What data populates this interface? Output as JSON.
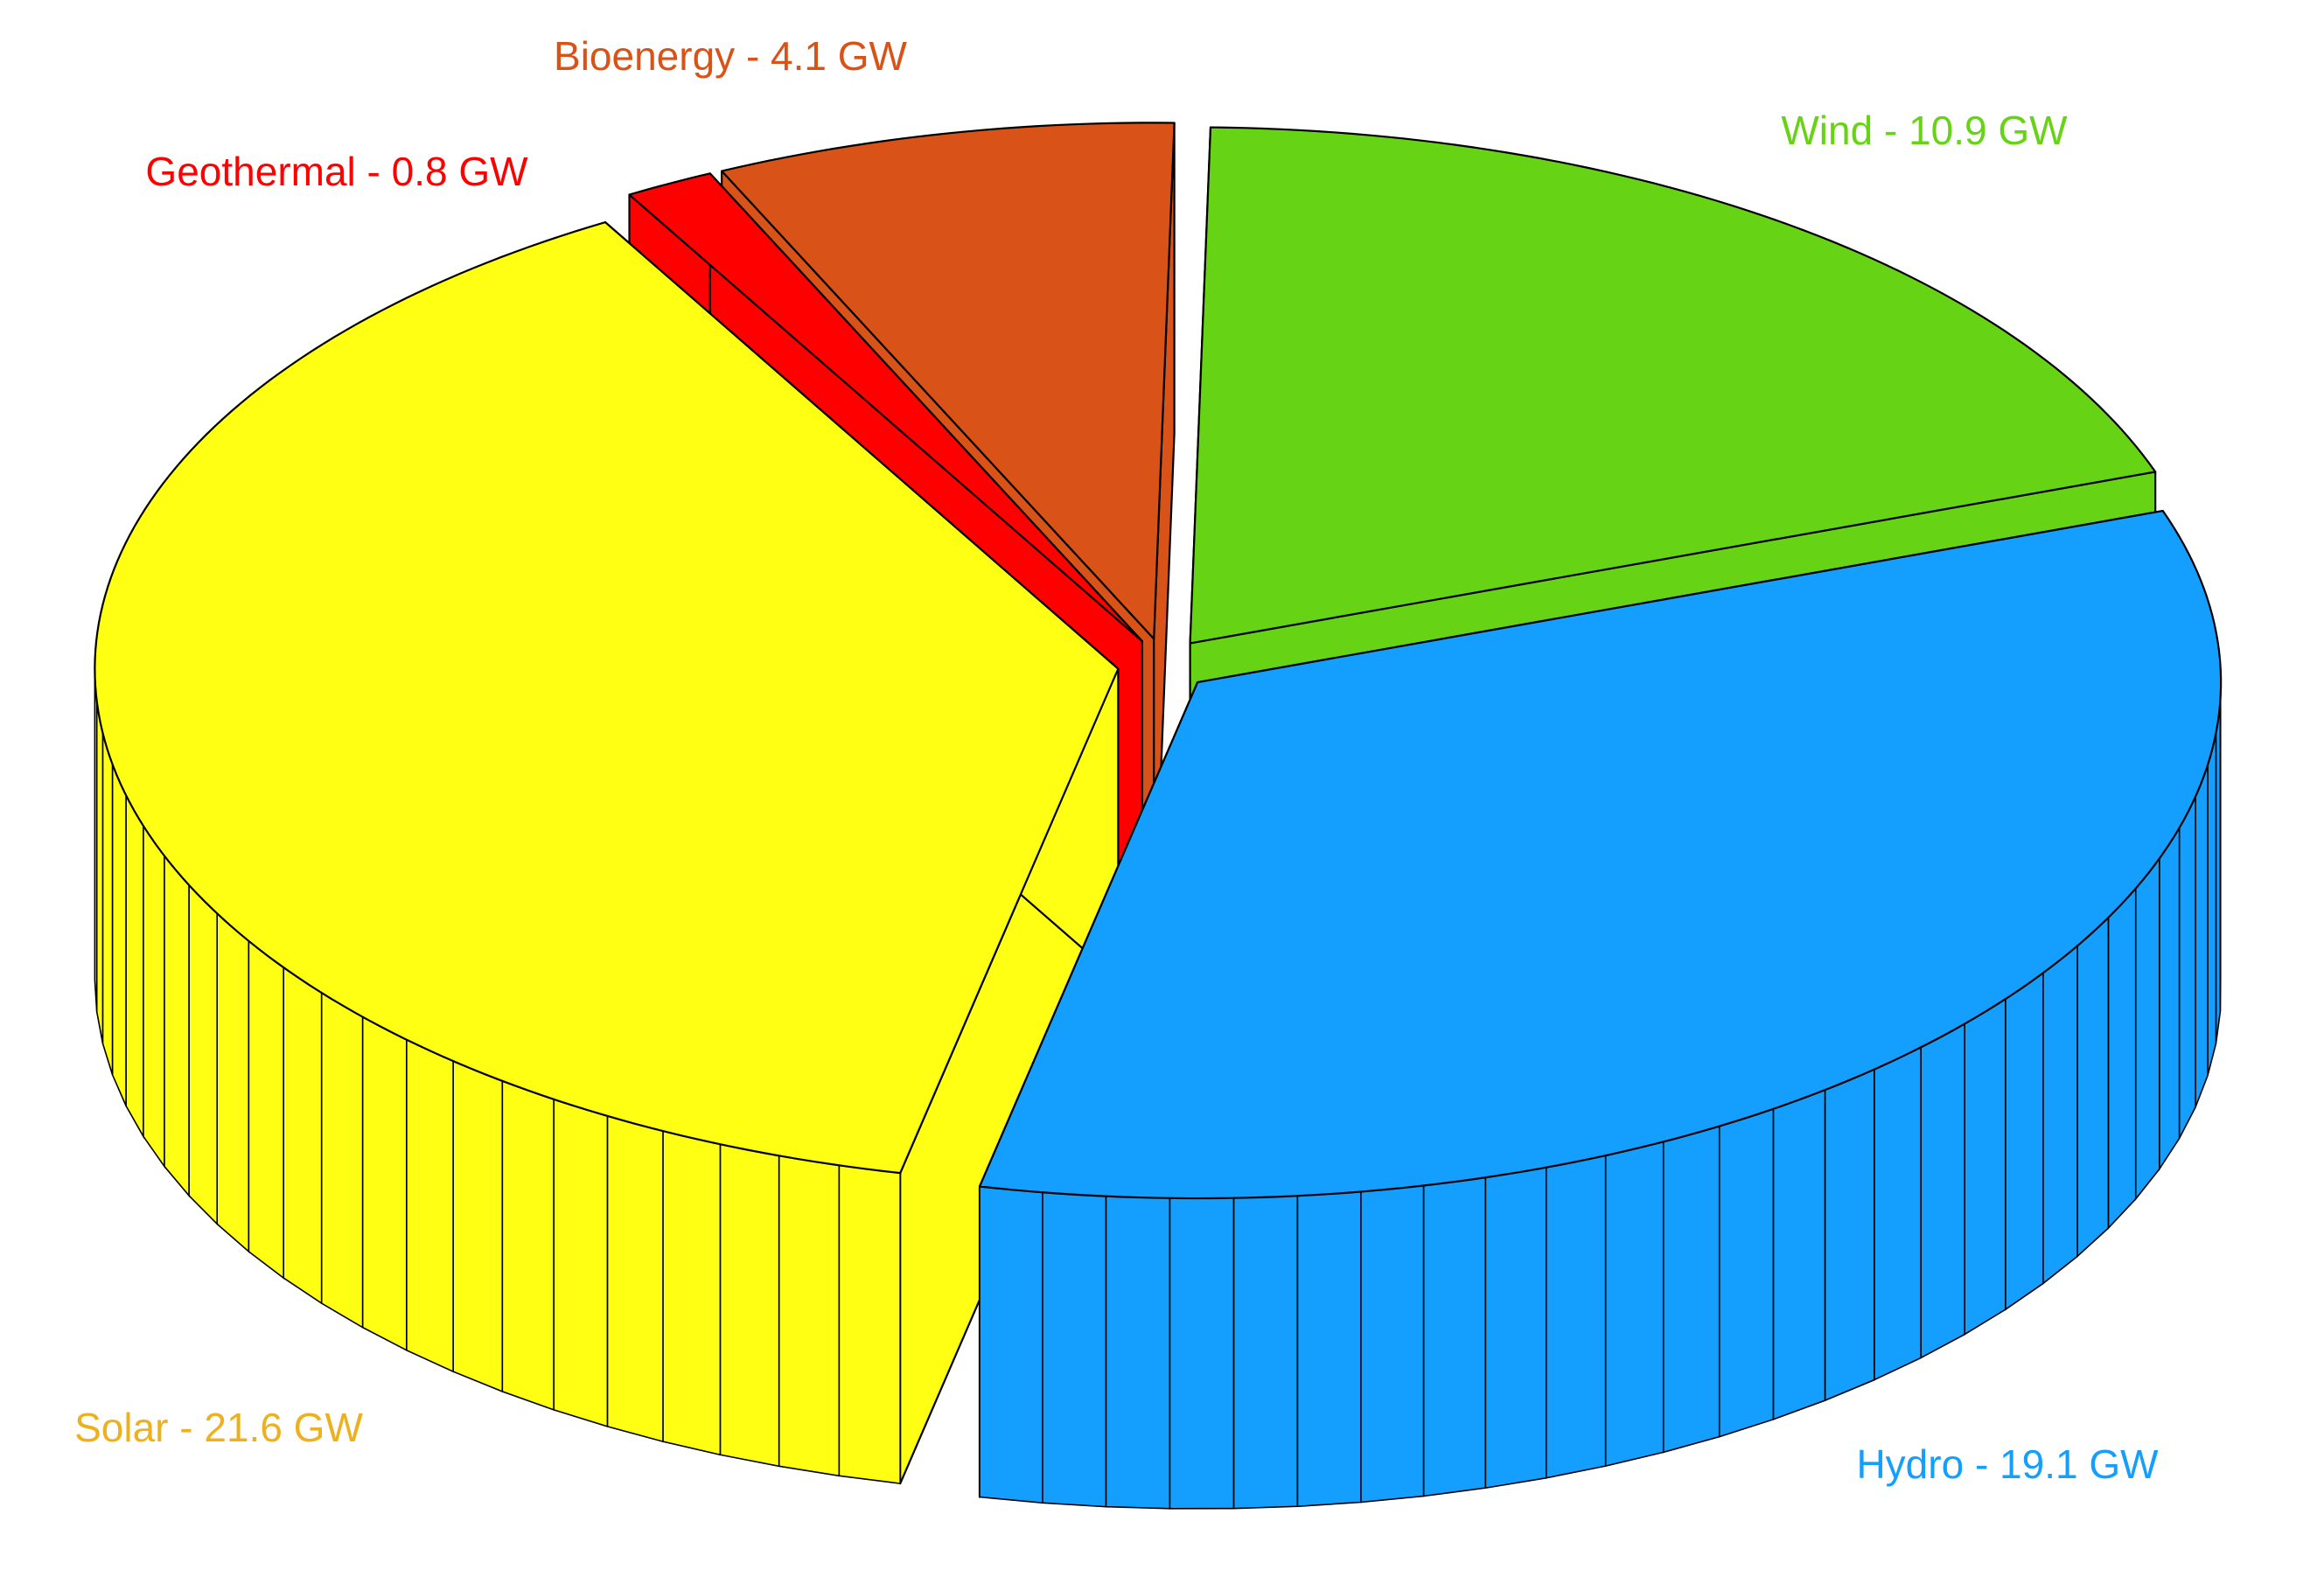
{
  "chart_data": {
    "type": "pie",
    "style": "3d-exploded",
    "unit": "GW",
    "slices": [
      {
        "label": "Wind - 10.9 GW",
        "category": "Wind",
        "value": 10.9,
        "color": "#66d414",
        "label_color": "#66d414"
      },
      {
        "label": "Hydro - 19.1 GW",
        "category": "Hydro",
        "value": 19.1,
        "color": "#149efd",
        "label_color": "#149efd"
      },
      {
        "label": "Solar - 21.6 GW",
        "category": "Solar",
        "value": 21.6,
        "color": "#ffff14",
        "label_color": "#edb120"
      },
      {
        "label": "Geothermal - 0.8 GW",
        "category": "Geothermal",
        "value": 0.8,
        "color": "#ff0000",
        "label_color": "#ff0000"
      },
      {
        "label": "Bioenergy - 4.1 GW",
        "category": "Bioenergy",
        "value": 4.1,
        "color": "#d95319",
        "label_color": "#d95319"
      }
    ],
    "title": "",
    "legend": "none"
  }
}
